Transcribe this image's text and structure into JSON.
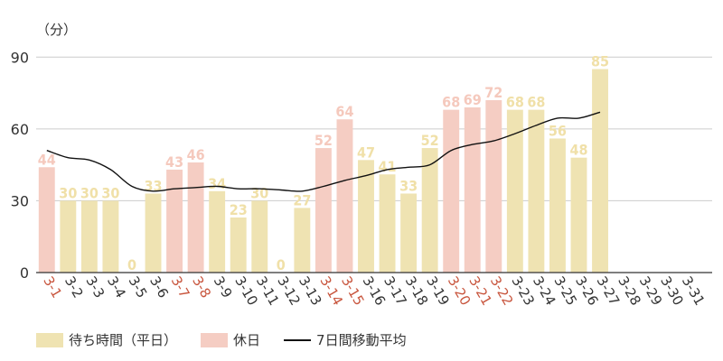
{
  "chart_data": {
    "type": "bar",
    "y_unit": "（分）",
    "ylim": [
      0,
      95
    ],
    "yticks": [
      "0",
      "30",
      "60",
      "90"
    ],
    "grid": true,
    "categories": [
      "3-1",
      "3-2",
      "3-3",
      "3-4",
      "3-5",
      "3-6",
      "3-7",
      "3-8",
      "3-9",
      "3-10",
      "3-11",
      "3-12",
      "3-13",
      "3-14",
      "3-15",
      "3-16",
      "3-17",
      "3-18",
      "3-19",
      "3-20",
      "3-21",
      "3-22",
      "3-23",
      "3-24",
      "3-25",
      "3-26",
      "3-27",
      "3-28",
      "3-29",
      "3-30",
      "3-31"
    ],
    "holiday": [
      true,
      false,
      false,
      false,
      false,
      false,
      true,
      true,
      false,
      false,
      false,
      false,
      false,
      true,
      true,
      false,
      false,
      false,
      false,
      true,
      true,
      true,
      false,
      false,
      false,
      false,
      false,
      false,
      false,
      false,
      false
    ],
    "values": [
      44,
      30,
      30,
      30,
      0,
      33,
      43,
      46,
      34,
      23,
      30,
      0,
      27,
      52,
      64,
      47,
      41,
      33,
      52,
      68,
      69,
      72,
      68,
      68,
      56,
      48,
      85,
      null,
      null,
      null,
      null
    ],
    "moving_average": [
      51,
      48,
      47,
      43,
      36,
      34,
      35,
      35.5,
      36,
      35,
      35,
      34.5,
      34,
      36,
      38.5,
      40.5,
      43,
      44,
      45,
      51,
      53.5,
      55,
      58,
      61.5,
      64.5,
      64.5,
      67,
      null,
      null,
      null,
      null
    ],
    "colors": {
      "weekday": "#efe3b2",
      "holiday": "#f5cdc3",
      "weekday_label": "#f0e0a8",
      "holiday_label": "#f5c9bd",
      "holiday_tick": "#c8553d",
      "tick": "#333333",
      "line": "#111111",
      "grid": "#cccccc"
    },
    "legend": [
      {
        "label": "待ち時間（平日）",
        "type": "bar",
        "color": "#efe3b2"
      },
      {
        "label": "休日",
        "type": "bar",
        "color": "#f5cdc3"
      },
      {
        "label": "7日間移動平均",
        "type": "line",
        "color": "#111111"
      }
    ],
    "legend_position": "bottom-left"
  }
}
